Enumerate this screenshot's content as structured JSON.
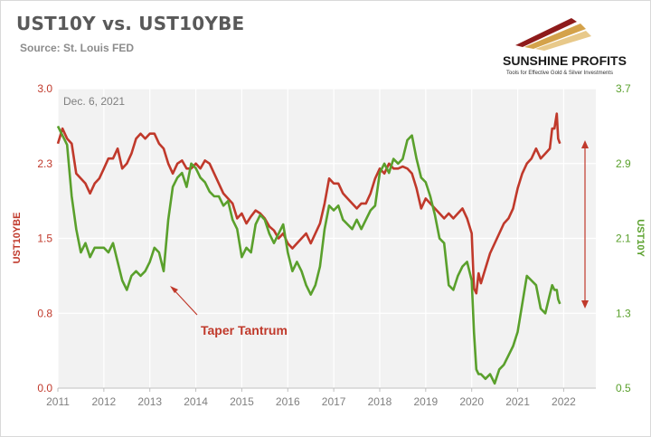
{
  "header": {
    "title": "UST10Y vs. UST10YBE",
    "source": "Source: St. Louis FED"
  },
  "logo": {
    "name": "SUNSHINE PROFITS",
    "tagline": "Tools for Effective Gold & Silver Investments"
  },
  "colors": {
    "ust10y": "#c0392b",
    "ust10ybe": "#5aa02c",
    "arrow": "#c0392b"
  },
  "chart_data": {
    "type": "line",
    "date_label": "Dec. 6, 2021",
    "annotation": "Taper Tantrum",
    "x_ticks": [
      "2011",
      "2012",
      "2013",
      "2014",
      "2015",
      "2016",
      "2017",
      "2018",
      "2019",
      "2020",
      "2021",
      "2022"
    ],
    "xlim": [
      2011.0,
      2022.7
    ],
    "y_left": {
      "label": "UST10YBE",
      "ticks": [
        "0.0",
        "0.8",
        "1.5",
        "2.3",
        "3.0"
      ],
      "ylim": [
        0.0,
        3.0
      ]
    },
    "y_right": {
      "label": "UST10Y",
      "ticks": [
        "0.5",
        "1.3",
        "2.1",
        "2.9",
        "3.7"
      ],
      "ylim": [
        0.5,
        3.7
      ]
    },
    "grid": true,
    "series": [
      {
        "name": "UST10YBE",
        "axis": "left",
        "points": [
          [
            2011.0,
            2.45
          ],
          [
            2011.1,
            2.6
          ],
          [
            2011.2,
            2.5
          ],
          [
            2011.3,
            2.45
          ],
          [
            2011.4,
            2.15
          ],
          [
            2011.5,
            2.1
          ],
          [
            2011.6,
            2.05
          ],
          [
            2011.7,
            1.95
          ],
          [
            2011.8,
            2.05
          ],
          [
            2011.9,
            2.1
          ],
          [
            2012.0,
            2.2
          ],
          [
            2012.1,
            2.3
          ],
          [
            2012.2,
            2.3
          ],
          [
            2012.3,
            2.4
          ],
          [
            2012.4,
            2.2
          ],
          [
            2012.5,
            2.25
          ],
          [
            2012.6,
            2.35
          ],
          [
            2012.7,
            2.5
          ],
          [
            2012.8,
            2.55
          ],
          [
            2012.9,
            2.5
          ],
          [
            2013.0,
            2.55
          ],
          [
            2013.1,
            2.55
          ],
          [
            2013.2,
            2.45
          ],
          [
            2013.3,
            2.4
          ],
          [
            2013.4,
            2.25
          ],
          [
            2013.5,
            2.15
          ],
          [
            2013.6,
            2.25
          ],
          [
            2013.7,
            2.28
          ],
          [
            2013.8,
            2.2
          ],
          [
            2013.9,
            2.2
          ],
          [
            2014.0,
            2.25
          ],
          [
            2014.1,
            2.2
          ],
          [
            2014.2,
            2.28
          ],
          [
            2014.3,
            2.25
          ],
          [
            2014.4,
            2.15
          ],
          [
            2014.5,
            2.05
          ],
          [
            2014.6,
            1.95
          ],
          [
            2014.7,
            1.9
          ],
          [
            2014.8,
            1.85
          ],
          [
            2014.9,
            1.7
          ],
          [
            2015.0,
            1.75
          ],
          [
            2015.1,
            1.65
          ],
          [
            2015.2,
            1.72
          ],
          [
            2015.3,
            1.78
          ],
          [
            2015.4,
            1.75
          ],
          [
            2015.5,
            1.7
          ],
          [
            2015.6,
            1.62
          ],
          [
            2015.7,
            1.58
          ],
          [
            2015.8,
            1.5
          ],
          [
            2015.9,
            1.55
          ],
          [
            2016.0,
            1.45
          ],
          [
            2016.1,
            1.4
          ],
          [
            2016.2,
            1.45
          ],
          [
            2016.3,
            1.5
          ],
          [
            2016.4,
            1.55
          ],
          [
            2016.5,
            1.45
          ],
          [
            2016.6,
            1.55
          ],
          [
            2016.7,
            1.65
          ],
          [
            2016.8,
            1.85
          ],
          [
            2016.9,
            2.1
          ],
          [
            2017.0,
            2.05
          ],
          [
            2017.1,
            2.05
          ],
          [
            2017.2,
            1.95
          ],
          [
            2017.3,
            1.9
          ],
          [
            2017.4,
            1.85
          ],
          [
            2017.5,
            1.8
          ],
          [
            2017.6,
            1.85
          ],
          [
            2017.7,
            1.85
          ],
          [
            2017.8,
            1.95
          ],
          [
            2017.9,
            2.1
          ],
          [
            2018.0,
            2.2
          ],
          [
            2018.1,
            2.15
          ],
          [
            2018.2,
            2.25
          ],
          [
            2018.3,
            2.2
          ],
          [
            2018.4,
            2.2
          ],
          [
            2018.5,
            2.22
          ],
          [
            2018.6,
            2.2
          ],
          [
            2018.7,
            2.15
          ],
          [
            2018.8,
            2.0
          ],
          [
            2018.9,
            1.8
          ],
          [
            2019.0,
            1.9
          ],
          [
            2019.1,
            1.85
          ],
          [
            2019.2,
            1.8
          ],
          [
            2019.3,
            1.75
          ],
          [
            2019.4,
            1.7
          ],
          [
            2019.5,
            1.75
          ],
          [
            2019.6,
            1.7
          ],
          [
            2019.7,
            1.75
          ],
          [
            2019.8,
            1.8
          ],
          [
            2019.9,
            1.7
          ],
          [
            2020.0,
            1.55
          ],
          [
            2020.05,
            1.0
          ],
          [
            2020.1,
            0.95
          ],
          [
            2020.15,
            1.15
          ],
          [
            2020.2,
            1.05
          ],
          [
            2020.3,
            1.2
          ],
          [
            2020.4,
            1.35
          ],
          [
            2020.5,
            1.45
          ],
          [
            2020.6,
            1.55
          ],
          [
            2020.7,
            1.65
          ],
          [
            2020.8,
            1.7
          ],
          [
            2020.9,
            1.8
          ],
          [
            2021.0,
            2.0
          ],
          [
            2021.1,
            2.15
          ],
          [
            2021.2,
            2.25
          ],
          [
            2021.3,
            2.3
          ],
          [
            2021.4,
            2.4
          ],
          [
            2021.5,
            2.3
          ],
          [
            2021.6,
            2.35
          ],
          [
            2021.7,
            2.4
          ],
          [
            2021.75,
            2.6
          ],
          [
            2021.8,
            2.6
          ],
          [
            2021.85,
            2.75
          ],
          [
            2021.88,
            2.5
          ],
          [
            2021.92,
            2.45
          ]
        ]
      },
      {
        "name": "UST10Y",
        "axis": "right",
        "points": [
          [
            2011.0,
            3.3
          ],
          [
            2011.1,
            3.2
          ],
          [
            2011.2,
            3.1
          ],
          [
            2011.3,
            2.55
          ],
          [
            2011.4,
            2.2
          ],
          [
            2011.5,
            1.95
          ],
          [
            2011.6,
            2.05
          ],
          [
            2011.7,
            1.9
          ],
          [
            2011.8,
            2.0
          ],
          [
            2011.9,
            2.0
          ],
          [
            2012.0,
            2.0
          ],
          [
            2012.1,
            1.95
          ],
          [
            2012.2,
            2.05
          ],
          [
            2012.3,
            1.85
          ],
          [
            2012.4,
            1.65
          ],
          [
            2012.5,
            1.55
          ],
          [
            2012.6,
            1.7
          ],
          [
            2012.7,
            1.75
          ],
          [
            2012.8,
            1.7
          ],
          [
            2012.9,
            1.75
          ],
          [
            2013.0,
            1.85
          ],
          [
            2013.1,
            2.0
          ],
          [
            2013.2,
            1.95
          ],
          [
            2013.3,
            1.75
          ],
          [
            2013.4,
            2.3
          ],
          [
            2013.5,
            2.65
          ],
          [
            2013.6,
            2.75
          ],
          [
            2013.7,
            2.8
          ],
          [
            2013.8,
            2.65
          ],
          [
            2013.9,
            2.9
          ],
          [
            2014.0,
            2.85
          ],
          [
            2014.1,
            2.75
          ],
          [
            2014.2,
            2.7
          ],
          [
            2014.3,
            2.6
          ],
          [
            2014.4,
            2.55
          ],
          [
            2014.5,
            2.55
          ],
          [
            2014.6,
            2.45
          ],
          [
            2014.7,
            2.5
          ],
          [
            2014.8,
            2.3
          ],
          [
            2014.9,
            2.2
          ],
          [
            2015.0,
            1.9
          ],
          [
            2015.1,
            2.0
          ],
          [
            2015.2,
            1.95
          ],
          [
            2015.3,
            2.25
          ],
          [
            2015.4,
            2.35
          ],
          [
            2015.5,
            2.3
          ],
          [
            2015.6,
            2.15
          ],
          [
            2015.7,
            2.05
          ],
          [
            2015.8,
            2.15
          ],
          [
            2015.9,
            2.25
          ],
          [
            2016.0,
            1.95
          ],
          [
            2016.1,
            1.75
          ],
          [
            2016.2,
            1.85
          ],
          [
            2016.3,
            1.75
          ],
          [
            2016.4,
            1.6
          ],
          [
            2016.5,
            1.5
          ],
          [
            2016.6,
            1.6
          ],
          [
            2016.7,
            1.8
          ],
          [
            2016.8,
            2.2
          ],
          [
            2016.9,
            2.45
          ],
          [
            2017.0,
            2.4
          ],
          [
            2017.1,
            2.45
          ],
          [
            2017.2,
            2.3
          ],
          [
            2017.3,
            2.25
          ],
          [
            2017.4,
            2.2
          ],
          [
            2017.5,
            2.3
          ],
          [
            2017.6,
            2.2
          ],
          [
            2017.7,
            2.3
          ],
          [
            2017.8,
            2.4
          ],
          [
            2017.9,
            2.45
          ],
          [
            2018.0,
            2.8
          ],
          [
            2018.1,
            2.9
          ],
          [
            2018.2,
            2.8
          ],
          [
            2018.3,
            2.95
          ],
          [
            2018.4,
            2.9
          ],
          [
            2018.5,
            2.95
          ],
          [
            2018.6,
            3.15
          ],
          [
            2018.7,
            3.2
          ],
          [
            2018.8,
            2.95
          ],
          [
            2018.9,
            2.75
          ],
          [
            2019.0,
            2.7
          ],
          [
            2019.1,
            2.55
          ],
          [
            2019.2,
            2.35
          ],
          [
            2019.3,
            2.1
          ],
          [
            2019.4,
            2.05
          ],
          [
            2019.5,
            1.6
          ],
          [
            2019.6,
            1.55
          ],
          [
            2019.7,
            1.7
          ],
          [
            2019.8,
            1.8
          ],
          [
            2019.9,
            1.85
          ],
          [
            2020.0,
            1.65
          ],
          [
            2020.05,
            1.1
          ],
          [
            2020.1,
            0.7
          ],
          [
            2020.15,
            0.65
          ],
          [
            2020.2,
            0.65
          ],
          [
            2020.3,
            0.6
          ],
          [
            2020.4,
            0.65
          ],
          [
            2020.5,
            0.55
          ],
          [
            2020.6,
            0.7
          ],
          [
            2020.7,
            0.75
          ],
          [
            2020.8,
            0.85
          ],
          [
            2020.9,
            0.95
          ],
          [
            2021.0,
            1.1
          ],
          [
            2021.1,
            1.4
          ],
          [
            2021.2,
            1.7
          ],
          [
            2021.3,
            1.65
          ],
          [
            2021.4,
            1.6
          ],
          [
            2021.5,
            1.35
          ],
          [
            2021.6,
            1.3
          ],
          [
            2021.7,
            1.5
          ],
          [
            2021.75,
            1.6
          ],
          [
            2021.8,
            1.55
          ],
          [
            2021.85,
            1.55
          ],
          [
            2021.88,
            1.45
          ],
          [
            2021.92,
            1.4
          ]
        ]
      }
    ]
  }
}
